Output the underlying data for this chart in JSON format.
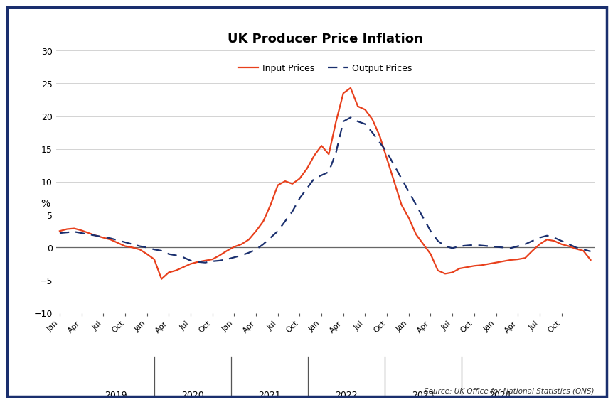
{
  "title": "UK Producer Price Inflation",
  "ylabel": "%",
  "source_text": "Source: UK Office for National Statistics (ONS)",
  "legend_input_label": "Input Prices",
  "legend_output_label": "Output Prices",
  "input_color": "#e8401c",
  "output_color": "#1a2f6e",
  "background_color": "#ffffff",
  "border_color": "#1a2f6e",
  "ylim": [
    -10,
    30
  ],
  "yticks": [
    -10,
    -5,
    0,
    5,
    10,
    15,
    20,
    25,
    30
  ],
  "year_labels": [
    "2019",
    "2020",
    "2021",
    "2022",
    "2023",
    "2024"
  ],
  "input_prices": [
    2.5,
    2.8,
    2.9,
    2.6,
    2.2,
    1.8,
    1.5,
    1.2,
    0.7,
    0.2,
    0.0,
    -0.3,
    -1.0,
    -1.8,
    -4.8,
    -3.8,
    -3.5,
    -3.0,
    -2.5,
    -2.2,
    -2.0,
    -1.8,
    -1.2,
    -0.5,
    0.1,
    0.5,
    1.2,
    2.5,
    4.0,
    6.5,
    9.5,
    10.1,
    9.7,
    10.5,
    12.0,
    14.0,
    15.5,
    14.2,
    19.2,
    23.5,
    24.3,
    21.5,
    21.0,
    19.5,
    17.0,
    13.5,
    10.0,
    6.5,
    4.5,
    2.0,
    0.5,
    -1.0,
    -3.5,
    -4.0,
    -3.8,
    -3.2,
    -3.0,
    -2.8,
    -2.7,
    -2.5,
    -2.3,
    -2.1,
    -1.9,
    -1.8,
    -1.6,
    -0.5,
    0.5,
    1.2,
    1.0,
    0.5,
    0.2,
    -0.2,
    -0.5,
    -1.9
  ],
  "output_prices": [
    2.2,
    2.3,
    2.4,
    2.2,
    2.0,
    1.8,
    1.6,
    1.4,
    1.1,
    0.8,
    0.5,
    0.2,
    0.0,
    -0.3,
    -0.5,
    -1.0,
    -1.2,
    -1.5,
    -2.0,
    -2.2,
    -2.3,
    -2.1,
    -2.0,
    -1.8,
    -1.5,
    -1.2,
    -0.8,
    -0.3,
    0.5,
    1.5,
    2.5,
    4.0,
    5.5,
    7.5,
    9.0,
    10.5,
    11.0,
    11.5,
    14.5,
    19.2,
    19.8,
    19.2,
    18.8,
    17.5,
    16.0,
    14.5,
    12.5,
    10.5,
    8.5,
    6.5,
    4.5,
    2.5,
    1.0,
    0.2,
    -0.1,
    0.2,
    0.3,
    0.4,
    0.3,
    0.2,
    0.1,
    0.0,
    -0.1,
    0.2,
    0.5,
    1.0,
    1.5,
    1.8,
    1.5,
    1.0,
    0.5,
    0.0,
    -0.3,
    -0.6
  ]
}
